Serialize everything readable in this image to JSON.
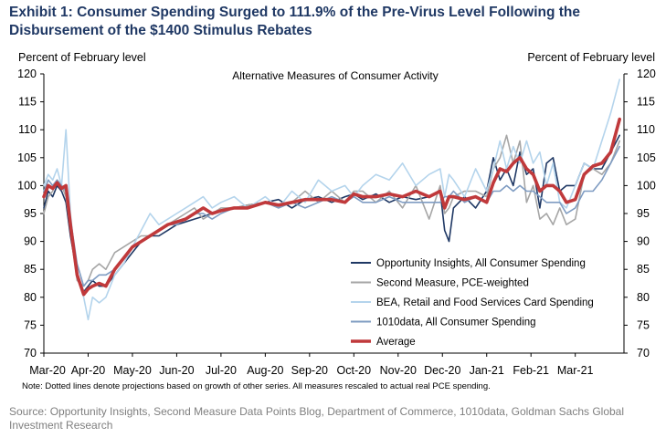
{
  "title": "Exhibit 1: Consumer Spending Surged to 111.9% of the Pre-Virus Level Following the Disbursement of the $1400 Stimulus Rebates",
  "note": "Note: Dotted lines denote projections based on growth of other series. All measures rescaled to actual real PCE spending.",
  "source": "Source: Opportunity Insights, Second Measure Data Points Blog, Department of Commerce, 1010data, Goldman Sachs Global Investment Research",
  "colors": {
    "opportunity": "#1f3864",
    "second_measure": "#a6a6a6",
    "bea": "#b4d4ec",
    "tenten": "#7f9cc2",
    "average": "#c0393b"
  },
  "chart_data": {
    "type": "line",
    "title": "Alternative Measures of Consumer Activity",
    "ylabel_left": "Percent of February  level",
    "ylabel_right": "Percent of February  level",
    "ylim": [
      70,
      120
    ],
    "yticks": [
      "70",
      "75",
      "80",
      "85",
      "90",
      "95",
      "100",
      "105",
      "110",
      "115",
      "120"
    ],
    "xlim": [
      0,
      13.1
    ],
    "xtick_labels": [
      "Mar-20",
      "Apr-20",
      "May-20",
      "Jun-20",
      "Jul-20",
      "Aug-20",
      "Sep-20",
      "Oct-20",
      "Nov-20",
      "Dec-20",
      "Jan-21",
      "Feb-21",
      "Mar-21"
    ],
    "legend_position": "bottom-right",
    "series": [
      {
        "name": "Opportunity Insights, All Consumer Spending",
        "key": "opportunity",
        "x": [
          0.0,
          0.1,
          0.2,
          0.3,
          0.4,
          0.5,
          0.6,
          0.75,
          0.9,
          1.0,
          1.1,
          1.25,
          1.4,
          1.6,
          1.8,
          2.0,
          2.2,
          2.4,
          2.6,
          2.8,
          3.0,
          3.2,
          3.4,
          3.6,
          3.8,
          4.0,
          4.3,
          4.6,
          5.0,
          5.3,
          5.6,
          5.9,
          6.2,
          6.5,
          6.8,
          7.0,
          7.2,
          7.5,
          7.8,
          8.1,
          8.4,
          8.7,
          8.95,
          9.05,
          9.15,
          9.25,
          9.5,
          9.75,
          10.0,
          10.15,
          10.3,
          10.45,
          10.6,
          10.75,
          10.9,
          11.05,
          11.2,
          11.35,
          11.5,
          11.65,
          11.8,
          12.0,
          12.2,
          12.4,
          12.6,
          12.8,
          13.0
        ],
        "y": [
          96,
          99,
          98,
          100,
          99,
          97,
          91,
          84,
          81,
          82,
          83,
          82,
          82,
          84,
          86,
          88,
          90,
          91,
          91,
          92,
          93,
          93.5,
          94,
          94.5,
          95,
          95.5,
          96,
          96.5,
          97,
          97.5,
          96,
          97.5,
          98,
          97,
          98,
          98.5,
          97.5,
          98.5,
          97,
          98,
          97.5,
          98,
          99,
          92,
          90,
          96,
          98,
          96,
          99,
          105,
          101,
          103,
          100,
          106,
          102,
          103,
          96,
          104,
          105,
          99,
          100,
          100,
          104,
          103,
          103,
          106,
          109
        ]
      },
      {
        "name": "Second Measure, PCE-weighted",
        "key": "second_measure",
        "x": [
          0.0,
          0.1,
          0.2,
          0.3,
          0.4,
          0.5,
          0.6,
          0.75,
          0.9,
          1.0,
          1.1,
          1.25,
          1.4,
          1.6,
          1.8,
          2.0,
          2.2,
          2.4,
          2.6,
          2.8,
          3.0,
          3.2,
          3.4,
          3.6,
          3.8,
          4.0,
          4.3,
          4.6,
          5.0,
          5.3,
          5.6,
          5.9,
          6.2,
          6.5,
          6.8,
          7.0,
          7.2,
          7.5,
          7.8,
          8.1,
          8.4,
          8.7,
          8.95,
          9.05,
          9.15,
          9.25,
          9.5,
          9.75,
          10.0,
          10.15,
          10.3,
          10.45,
          10.6,
          10.75,
          10.9,
          11.05,
          11.2,
          11.35,
          11.5,
          11.65,
          11.8,
          12.0,
          12.2,
          12.4,
          12.6,
          12.8,
          13.0
        ],
        "y": [
          95,
          98,
          99,
          101,
          100,
          98,
          92,
          83,
          82,
          83,
          85,
          86,
          85,
          88,
          89,
          90,
          91,
          91,
          92,
          93,
          94,
          95,
          96,
          94,
          95,
          96,
          96,
          96.5,
          97,
          96,
          97,
          99,
          97,
          99,
          97,
          99,
          99,
          97,
          99,
          96,
          100,
          94,
          100,
          95,
          96,
          98,
          99,
          99,
          98,
          103,
          105,
          109,
          104,
          108,
          97,
          100,
          94,
          95,
          93,
          96,
          93,
          94,
          102,
          103,
          102,
          104,
          108
        ]
      },
      {
        "name": "BEA, Retail and Food Services Card Spending",
        "key": "bea",
        "x": [
          0.0,
          0.1,
          0.2,
          0.3,
          0.4,
          0.5,
          0.6,
          0.75,
          0.9,
          1.0,
          1.1,
          1.25,
          1.4,
          1.6,
          1.8,
          2.0,
          2.2,
          2.4,
          2.6,
          2.8,
          3.0,
          3.2,
          3.4,
          3.6,
          3.8,
          4.0,
          4.3,
          4.6,
          5.0,
          5.3,
          5.6,
          5.9,
          6.2,
          6.5,
          6.8,
          7.0,
          7.2,
          7.5,
          7.8,
          8.1,
          8.4,
          8.7,
          8.95,
          9.05,
          9.15,
          9.25,
          9.5,
          9.75,
          10.0,
          10.15,
          10.3,
          10.45,
          10.6,
          10.75,
          10.9,
          11.05,
          11.2,
          11.35,
          11.5,
          11.65,
          11.8,
          12.0,
          12.2,
          12.4,
          12.6,
          12.8,
          13.0
        ],
        "y": [
          100,
          102,
          101,
          103,
          100,
          110,
          95,
          84,
          80,
          76,
          80,
          79,
          80,
          84,
          86,
          89,
          92,
          95,
          93,
          94,
          95,
          96,
          97,
          98,
          96,
          97,
          98,
          96,
          98,
          96,
          99,
          97,
          101,
          99,
          100,
          98,
          100,
          102,
          101,
          104,
          100,
          102,
          103,
          98,
          102,
          101,
          98,
          103,
          99,
          103,
          108,
          103,
          107,
          104,
          108,
          104,
          106,
          100,
          104,
          97,
          96,
          100,
          104,
          103,
          108,
          113,
          119
        ]
      },
      {
        "name": "1010data, All Consumer Spending",
        "key": "tenten",
        "x": [
          0.0,
          0.1,
          0.2,
          0.3,
          0.4,
          0.5,
          0.6,
          0.75,
          0.9,
          1.0,
          1.1,
          1.25,
          1.4,
          1.6,
          1.8,
          2.0,
          2.2,
          2.4,
          2.6,
          2.8,
          3.0,
          3.2,
          3.4,
          3.6,
          3.8,
          4.0,
          4.3,
          4.6,
          5.0,
          5.3,
          5.6,
          5.9,
          6.2,
          6.5,
          6.8,
          7.0,
          7.2,
          7.5,
          7.8,
          8.1,
          8.4,
          8.7,
          8.95,
          9.05,
          9.15,
          9.25,
          9.5,
          9.75,
          10.0,
          10.15,
          10.3,
          10.45,
          10.6,
          10.75,
          10.9,
          11.05,
          11.2,
          11.35,
          11.5,
          11.65,
          11.8,
          12.0,
          12.2,
          12.4,
          12.6,
          12.8,
          13.0
        ],
        "y": [
          99,
          101,
          100,
          101,
          100,
          99,
          94,
          86,
          82,
          83,
          83,
          84,
          84,
          85,
          87,
          89,
          90,
          91,
          92,
          93,
          93,
          94,
          95,
          95,
          94,
          95,
          96,
          96,
          97,
          96,
          97,
          96,
          97,
          98,
          97,
          98,
          97,
          97,
          98,
          97,
          97,
          97,
          97,
          98,
          98,
          99,
          97,
          98,
          97,
          99,
          99,
          100,
          99,
          100,
          99,
          99,
          98,
          97,
          97,
          97,
          95,
          96,
          99,
          99,
          101,
          104,
          107
        ]
      },
      {
        "name": "Average",
        "key": "average",
        "x": [
          0.0,
          0.1,
          0.2,
          0.3,
          0.4,
          0.5,
          0.6,
          0.75,
          0.9,
          1.0,
          1.1,
          1.25,
          1.4,
          1.6,
          1.8,
          2.0,
          2.2,
          2.4,
          2.6,
          2.8,
          3.0,
          3.2,
          3.4,
          3.6,
          3.8,
          4.0,
          4.3,
          4.6,
          5.0,
          5.3,
          5.6,
          5.9,
          6.2,
          6.5,
          6.8,
          7.0,
          7.2,
          7.5,
          7.8,
          8.1,
          8.4,
          8.7,
          8.95,
          9.05,
          9.15,
          9.25,
          9.5,
          9.75,
          10.0,
          10.15,
          10.3,
          10.45,
          10.6,
          10.75,
          10.9,
          11.05,
          11.2,
          11.35,
          11.5,
          11.65,
          11.8,
          12.0,
          12.2,
          12.4,
          12.6,
          12.8,
          13.0
        ],
        "y": [
          98,
          100,
          99.5,
          100.5,
          99.5,
          100,
          93,
          84,
          80.5,
          81.5,
          82,
          82.5,
          82,
          85,
          87,
          89,
          90,
          91,
          92,
          93,
          93.5,
          94,
          95,
          96,
          95,
          95.5,
          96,
          96,
          97,
          96.5,
          97,
          97.5,
          97.5,
          97.5,
          97,
          98.5,
          98,
          98,
          98.5,
          98,
          99,
          98,
          99,
          96,
          98,
          98,
          97.5,
          98,
          97,
          100.5,
          103,
          102.5,
          104,
          105,
          103,
          102,
          99,
          100,
          100,
          99,
          97,
          97.5,
          102,
          103.5,
          104,
          106,
          111.9
        ]
      }
    ]
  }
}
